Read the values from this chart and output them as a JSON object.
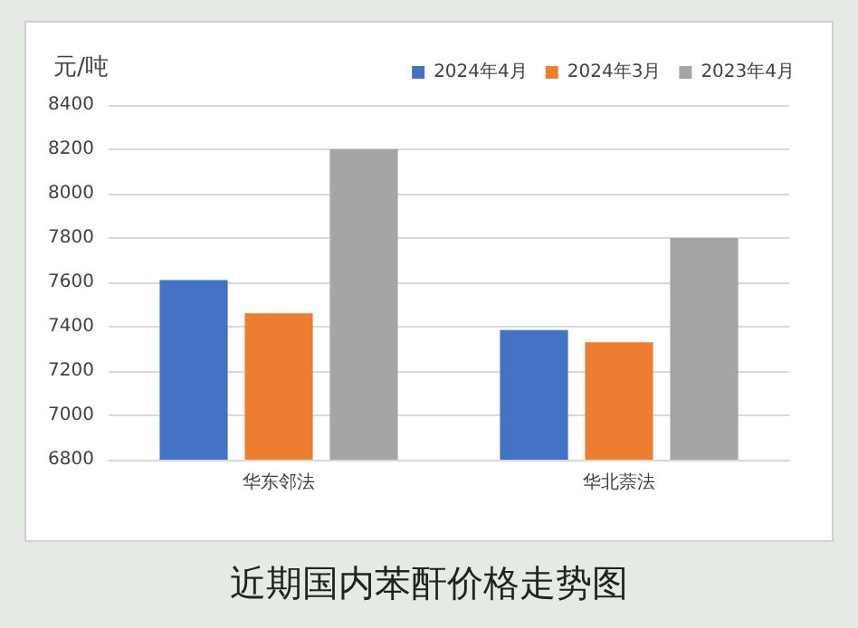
{
  "chart_data": {
    "type": "bar",
    "title": "近期国内苯酐价格走势图",
    "ylabel": "元/吨",
    "categories": [
      "华东邻法",
      "华北萘法"
    ],
    "series": [
      {
        "name": "2024年4月",
        "color": "#4472c4",
        "values": [
          7610,
          7385
        ]
      },
      {
        "name": "2024年3月",
        "color": "#ed7d31",
        "values": [
          7460,
          7330
        ]
      },
      {
        "name": "2023年4月",
        "color": "#a5a5a5",
        "values": [
          8200,
          7800
        ]
      }
    ],
    "ylim": [
      6800,
      8400
    ],
    "yticks": [
      6800,
      7000,
      7200,
      7400,
      7600,
      7800,
      8000,
      8200,
      8400
    ],
    "grid": "y",
    "legend": "top right"
  }
}
